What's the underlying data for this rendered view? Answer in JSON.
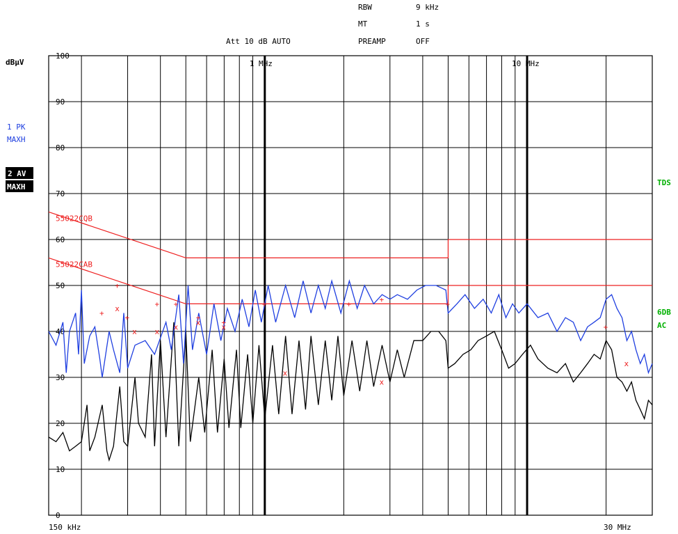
{
  "header": {
    "rbw_label": "RBW",
    "rbw_value": "9 kHz",
    "mt_label": "MT",
    "mt_value": "1 s",
    "att": "Att 10 dB AUTO",
    "preamp_label": "PREAMP",
    "preamp_value": "OFF"
  },
  "left_panel": {
    "unit": "dBµV",
    "trace1_line1": "1 PK",
    "trace1_line2": "MAXH",
    "trace2_line1": "2 AV",
    "trace2_line2": "MAXH"
  },
  "right_panel": {
    "tds": "TDS",
    "db6": "6DB",
    "ac": "AC"
  },
  "colors": {
    "trace_pk": "#1f3fe0",
    "trace_av": "#000000",
    "limit": "#ee2020",
    "right_labels": "#00b000",
    "left_labels": "#1f3fe0",
    "grid": "#000000"
  },
  "chart_data": {
    "type": "line",
    "x_scale": "log",
    "x_unit": "Hz",
    "xlim": [
      150000,
      30000000
    ],
    "ylim": [
      0,
      100
    ],
    "y_unit": "dBµV",
    "y_ticks": [
      100,
      90,
      80,
      70,
      60,
      50,
      40,
      30,
      20,
      10,
      0
    ],
    "x_start_label": "150 kHz",
    "x_end_label": "30 MHz",
    "x_mid_labels": [
      {
        "freq": 1000000,
        "label": "1 MHz"
      },
      {
        "freq": 10000000,
        "label": "10 MHz"
      }
    ],
    "limit_lines": [
      {
        "name": "55022CQB",
        "points": [
          [
            150000,
            66
          ],
          [
            500000,
            56
          ],
          [
            5000000,
            56
          ],
          [
            5000000,
            60
          ],
          [
            30000000,
            60
          ]
        ]
      },
      {
        "name": "55022CAB",
        "points": [
          [
            150000,
            56
          ],
          [
            500000,
            46
          ],
          [
            5000000,
            46
          ],
          [
            5000000,
            50
          ],
          [
            30000000,
            50
          ]
        ]
      }
    ],
    "series": [
      {
        "name": "1 PK MAXH",
        "color": "#1f3fe0",
        "points": [
          [
            150000,
            40
          ],
          [
            160000,
            37
          ],
          [
            170000,
            42
          ],
          [
            175000,
            31
          ],
          [
            180000,
            40
          ],
          [
            190000,
            44
          ],
          [
            195000,
            35
          ],
          [
            200000,
            49
          ],
          [
            205000,
            33
          ],
          [
            215000,
            39
          ],
          [
            225000,
            41
          ],
          [
            235000,
            34
          ],
          [
            240000,
            30
          ],
          [
            255000,
            40
          ],
          [
            265000,
            36
          ],
          [
            280000,
            31
          ],
          [
            290000,
            44
          ],
          [
            300000,
            32
          ],
          [
            320000,
            37
          ],
          [
            350000,
            38
          ],
          [
            380000,
            35
          ],
          [
            420000,
            42
          ],
          [
            440000,
            36
          ],
          [
            470000,
            48
          ],
          [
            490000,
            33
          ],
          [
            510000,
            50
          ],
          [
            530000,
            36
          ],
          [
            560000,
            44
          ],
          [
            600000,
            35
          ],
          [
            640000,
            46
          ],
          [
            680000,
            38
          ],
          [
            720000,
            45
          ],
          [
            770000,
            40
          ],
          [
            820000,
            47
          ],
          [
            870000,
            41
          ],
          [
            920000,
            49
          ],
          [
            970000,
            42
          ],
          [
            1030000,
            50
          ],
          [
            1100000,
            42
          ],
          [
            1200000,
            50
          ],
          [
            1300000,
            43
          ],
          [
            1400000,
            51
          ],
          [
            1500000,
            44
          ],
          [
            1600000,
            50
          ],
          [
            1700000,
            45
          ],
          [
            1800000,
            51
          ],
          [
            1950000,
            44
          ],
          [
            2100000,
            51
          ],
          [
            2250000,
            45
          ],
          [
            2400000,
            50
          ],
          [
            2600000,
            46
          ],
          [
            2800000,
            48
          ],
          [
            3000000,
            47
          ],
          [
            3200000,
            48
          ],
          [
            3500000,
            47
          ],
          [
            3800000,
            49
          ],
          [
            4100000,
            50
          ],
          [
            4500000,
            50
          ],
          [
            4900000,
            49
          ],
          [
            5000000,
            44
          ],
          [
            5400000,
            46
          ],
          [
            5800000,
            48
          ],
          [
            6300000,
            45
          ],
          [
            6800000,
            47
          ],
          [
            7300000,
            44
          ],
          [
            7800000,
            48
          ],
          [
            8300000,
            43
          ],
          [
            8800000,
            46
          ],
          [
            9300000,
            44
          ],
          [
            10000000,
            46
          ],
          [
            11000000,
            43
          ],
          [
            12000000,
            44
          ],
          [
            13000000,
            40
          ],
          [
            14000000,
            43
          ],
          [
            15000000,
            42
          ],
          [
            16000000,
            38
          ],
          [
            17000000,
            41
          ],
          [
            18000000,
            42
          ],
          [
            19000000,
            43
          ],
          [
            20000000,
            47
          ],
          [
            21000000,
            48
          ],
          [
            22000000,
            45
          ],
          [
            23000000,
            43
          ],
          [
            24000000,
            38
          ],
          [
            25000000,
            40
          ],
          [
            26000000,
            36
          ],
          [
            27000000,
            33
          ],
          [
            28000000,
            35
          ],
          [
            29000000,
            31
          ],
          [
            30000000,
            33
          ]
        ]
      },
      {
        "name": "2 AV MAXH",
        "color": "#000000",
        "points": [
          [
            150000,
            17
          ],
          [
            160000,
            16
          ],
          [
            170000,
            18
          ],
          [
            180000,
            14
          ],
          [
            190000,
            15
          ],
          [
            200000,
            16
          ],
          [
            210000,
            24
          ],
          [
            215000,
            14
          ],
          [
            225000,
            17
          ],
          [
            240000,
            24
          ],
          [
            250000,
            14
          ],
          [
            255000,
            12
          ],
          [
            265000,
            15
          ],
          [
            280000,
            28
          ],
          [
            290000,
            16
          ],
          [
            300000,
            15
          ],
          [
            320000,
            30
          ],
          [
            330000,
            20
          ],
          [
            350000,
            17
          ],
          [
            370000,
            35
          ],
          [
            380000,
            15
          ],
          [
            400000,
            38
          ],
          [
            420000,
            17
          ],
          [
            450000,
            42
          ],
          [
            470000,
            15
          ],
          [
            500000,
            40
          ],
          [
            520000,
            16
          ],
          [
            560000,
            30
          ],
          [
            590000,
            18
          ],
          [
            630000,
            36
          ],
          [
            660000,
            18
          ],
          [
            700000,
            34
          ],
          [
            730000,
            19
          ],
          [
            780000,
            36
          ],
          [
            810000,
            19
          ],
          [
            860000,
            35
          ],
          [
            900000,
            20
          ],
          [
            950000,
            37
          ],
          [
            1000000,
            21
          ],
          [
            1070000,
            37
          ],
          [
            1130000,
            22
          ],
          [
            1200000,
            39
          ],
          [
            1270000,
            22
          ],
          [
            1350000,
            38
          ],
          [
            1430000,
            23
          ],
          [
            1500000,
            39
          ],
          [
            1600000,
            24
          ],
          [
            1700000,
            38
          ],
          [
            1800000,
            25
          ],
          [
            1900000,
            39
          ],
          [
            2000000,
            26
          ],
          [
            2150000,
            38
          ],
          [
            2300000,
            27
          ],
          [
            2450000,
            38
          ],
          [
            2600000,
            28
          ],
          [
            2800000,
            37
          ],
          [
            3000000,
            29
          ],
          [
            3200000,
            36
          ],
          [
            3400000,
            30
          ],
          [
            3700000,
            38
          ],
          [
            4000000,
            38
          ],
          [
            4300000,
            40
          ],
          [
            4600000,
            40
          ],
          [
            4900000,
            38
          ],
          [
            5000000,
            32
          ],
          [
            5300000,
            33
          ],
          [
            5700000,
            35
          ],
          [
            6100000,
            36
          ],
          [
            6500000,
            38
          ],
          [
            7000000,
            39
          ],
          [
            7500000,
            40
          ],
          [
            8000000,
            36
          ],
          [
            8500000,
            32
          ],
          [
            9000000,
            33
          ],
          [
            9600000,
            35
          ],
          [
            10300000,
            37
          ],
          [
            11000000,
            34
          ],
          [
            12000000,
            32
          ],
          [
            13000000,
            31
          ],
          [
            14000000,
            33
          ],
          [
            15000000,
            29
          ],
          [
            16000000,
            31
          ],
          [
            17000000,
            33
          ],
          [
            18000000,
            35
          ],
          [
            19000000,
            34
          ],
          [
            20000000,
            38
          ],
          [
            21000000,
            36
          ],
          [
            22000000,
            30
          ],
          [
            23000000,
            29
          ],
          [
            24000000,
            27
          ],
          [
            25000000,
            29
          ],
          [
            26000000,
            25
          ],
          [
            27000000,
            23
          ],
          [
            28000000,
            21
          ],
          [
            29000000,
            25
          ],
          [
            30000000,
            24
          ]
        ]
      }
    ],
    "markers_plus": [
      [
        240000,
        44
      ],
      [
        275000,
        50
      ],
      [
        300000,
        43
      ],
      [
        390000,
        46
      ],
      [
        460000,
        46
      ],
      [
        560000,
        43
      ],
      [
        700000,
        42
      ],
      [
        1000000,
        46
      ],
      [
        2100000,
        46
      ],
      [
        2800000,
        47
      ],
      [
        5000000,
        46
      ],
      [
        20000000,
        41
      ]
    ],
    "markers_x": [
      [
        275000,
        45
      ],
      [
        320000,
        40
      ],
      [
        390000,
        40
      ],
      [
        460000,
        41
      ],
      [
        560000,
        42
      ],
      [
        700000,
        41
      ],
      [
        1200000,
        31
      ],
      [
        2800000,
        29
      ],
      [
        24000000,
        33
      ]
    ]
  }
}
